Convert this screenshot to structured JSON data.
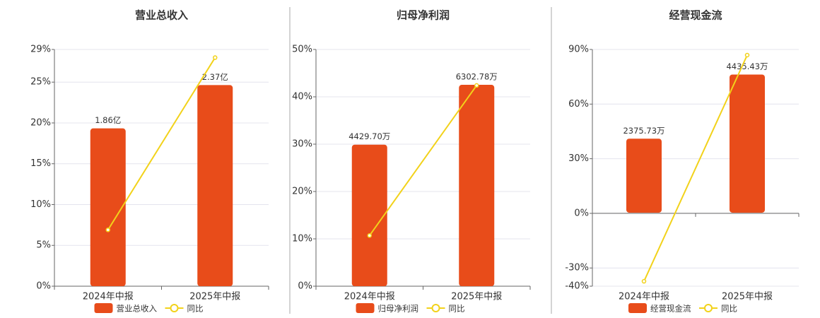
{
  "chart_data": [
    {
      "type": "bar",
      "title": "营业总收入",
      "categories": [
        "2024年中报",
        "2025年中报"
      ],
      "series": [
        {
          "name": "营业总收入",
          "color": "#e84c1a",
          "axis": "y2",
          "values": [
            1.86,
            2.37
          ],
          "value_labels": [
            "1.86亿",
            "2.37亿"
          ]
        },
        {
          "name": "同比",
          "type": "line",
          "color": "#f2d21a",
          "values": [
            6.9,
            28.0
          ]
        }
      ],
      "ylim": [
        0,
        29
      ],
      "yticks": [
        {
          "value": 0,
          "label": "0%"
        },
        {
          "value": 5,
          "label": "5%"
        },
        {
          "value": 10,
          "label": "10%"
        },
        {
          "value": 15,
          "label": "15%"
        },
        {
          "value": 20,
          "label": "20%"
        },
        {
          "value": 25,
          "label": "25%"
        },
        {
          "value": 29,
          "label": "29%"
        }
      ],
      "y2lim": [
        0,
        2.79
      ]
    },
    {
      "type": "bar",
      "title": "归母净利润",
      "categories": [
        "2024年中报",
        "2025年中报"
      ],
      "series": [
        {
          "name": "归母净利润",
          "color": "#e84c1a",
          "axis": "y2",
          "values": [
            4429.7,
            6302.78
          ],
          "value_labels": [
            "4429.70万",
            "6302.78万"
          ]
        },
        {
          "name": "同比",
          "type": "line",
          "color": "#f2d21a",
          "values": [
            10.7,
            42.4
          ]
        }
      ],
      "ylim": [
        0,
        50
      ],
      "yticks": [
        {
          "value": 0,
          "label": "0%"
        },
        {
          "value": 10,
          "label": "10%"
        },
        {
          "value": 20,
          "label": "20%"
        },
        {
          "value": 30,
          "label": "30%"
        },
        {
          "value": 40,
          "label": "40%"
        },
        {
          "value": 50,
          "label": "50%"
        }
      ],
      "y2lim": [
        0,
        7410
      ]
    },
    {
      "type": "bar",
      "title": "经营现金流",
      "categories": [
        "2024年中报",
        "2025年中报"
      ],
      "series": [
        {
          "name": "经营现金流",
          "color": "#e84c1a",
          "axis": "y2",
          "values": [
            2375.73,
            4435.43
          ],
          "value_labels": [
            "2375.73万",
            "4435.43万"
          ]
        },
        {
          "name": "同比",
          "type": "line",
          "color": "#f2d21a",
          "values": [
            -37.3,
            86.9
          ]
        }
      ],
      "ylim": [
        -40,
        90
      ],
      "yticks": [
        {
          "value": -40,
          "label": "-40%"
        },
        {
          "value": -30,
          "label": "-30%"
        },
        {
          "value": 0,
          "label": "0%"
        },
        {
          "value": 30,
          "label": "30%"
        },
        {
          "value": 60,
          "label": "60%"
        },
        {
          "value": 90,
          "label": "90%"
        }
      ],
      "y2lim": [
        -2360,
        5240
      ]
    }
  ]
}
